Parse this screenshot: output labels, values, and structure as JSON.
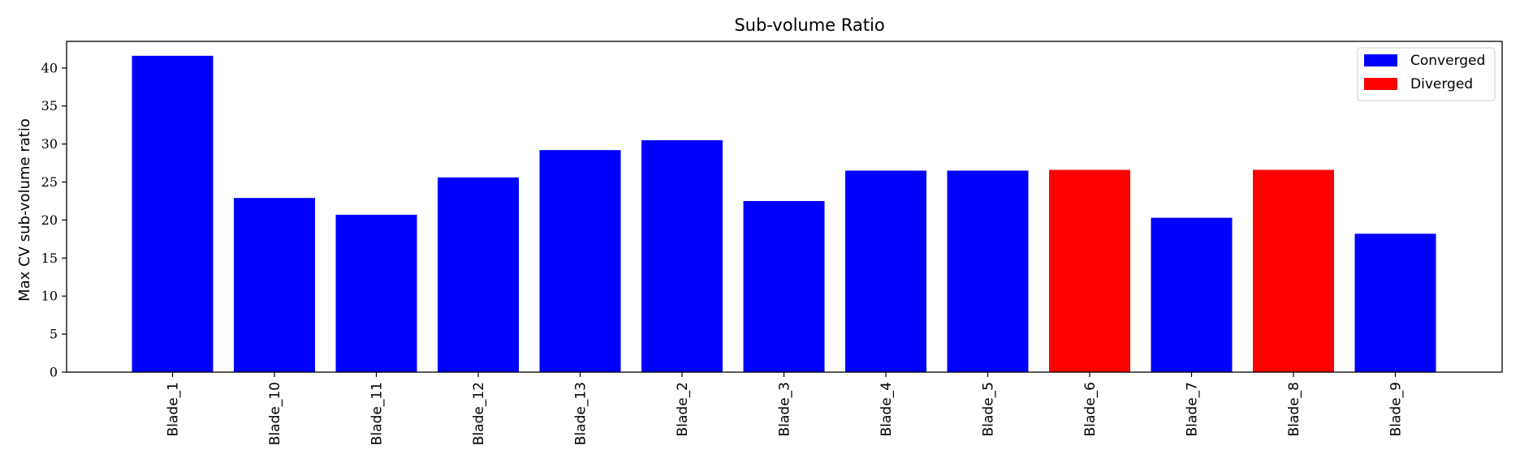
{
  "chart_data": {
    "type": "bar",
    "title": "Sub-volume Ratio",
    "xlabel": "",
    "ylabel": "Max CV sub-volume ratio",
    "ylim": [
      0,
      43.5
    ],
    "yticks": [
      0,
      5,
      10,
      15,
      20,
      25,
      30,
      35,
      40
    ],
    "legend_position": "top-right",
    "grid": false,
    "colors": {
      "Converged": "#0000ff",
      "Diverged": "#ff0000"
    },
    "legend": [
      {
        "label": "Converged",
        "color": "#0000ff"
      },
      {
        "label": "Diverged",
        "color": "#ff0000"
      }
    ],
    "categories": [
      "Blade_1",
      "Blade_10",
      "Blade_11",
      "Blade_12",
      "Blade_13",
      "Blade_2",
      "Blade_3",
      "Blade_4",
      "Blade_5",
      "Blade_6",
      "Blade_7",
      "Blade_8",
      "Blade_9"
    ],
    "values": [
      41.6,
      22.9,
      20.7,
      25.6,
      29.2,
      30.5,
      22.5,
      26.5,
      26.5,
      26.6,
      20.3,
      26.6,
      18.2
    ],
    "status": [
      "Converged",
      "Converged",
      "Converged",
      "Converged",
      "Converged",
      "Converged",
      "Converged",
      "Converged",
      "Converged",
      "Diverged",
      "Converged",
      "Diverged",
      "Converged"
    ]
  }
}
